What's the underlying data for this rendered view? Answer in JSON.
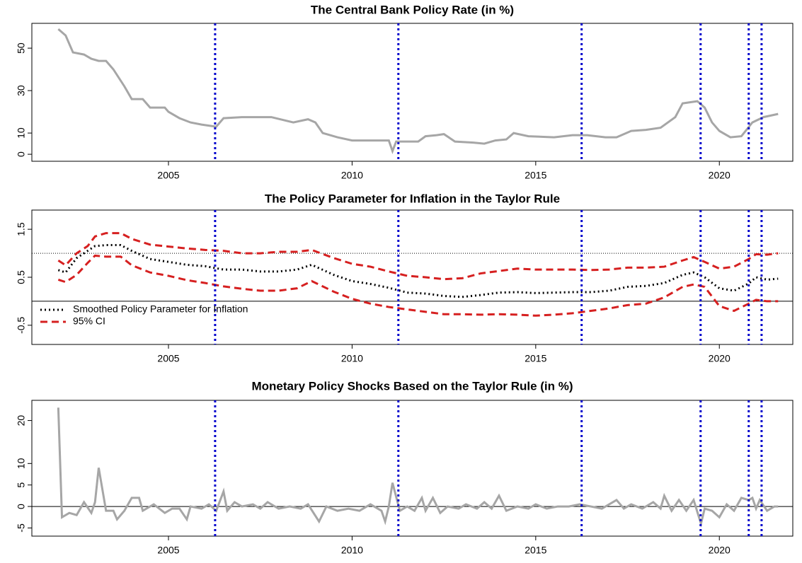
{
  "chart_data": [
    {
      "type": "line",
      "title": "The Central Bank Policy Rate (in %)",
      "xlim": [
        2001.28,
        2022.0
      ],
      "xticks": [
        2005,
        2010,
        2015,
        2020
      ],
      "ylim": [
        -3.3,
        61.7
      ],
      "yticks": [
        0,
        10,
        30,
        50
      ],
      "vlines": [
        2006.27,
        2011.26,
        2016.25,
        2019.49,
        2020.8,
        2021.15
      ],
      "vline_color": "#0000cc",
      "x": [
        2002.0,
        2002.2,
        2002.4,
        2002.7,
        2002.9,
        2003.1,
        2003.3,
        2003.5,
        2003.8,
        2004.0,
        2004.3,
        2004.5,
        2004.9,
        2005.0,
        2005.3,
        2005.6,
        2005.9,
        2006.3,
        2006.5,
        2007.0,
        2007.8,
        2008.4,
        2008.8,
        2009.0,
        2009.2,
        2009.6,
        2010.0,
        2011.0,
        2011.1,
        2011.2,
        2011.8,
        2012.0,
        2012.3,
        2012.5,
        2012.8,
        2013.3,
        2013.6,
        2013.9,
        2014.2,
        2014.4,
        2014.8,
        2015.5,
        2016.0,
        2016.4,
        2016.9,
        2017.2,
        2017.6,
        2018.0,
        2018.4,
        2018.8,
        2019.0,
        2019.4,
        2019.6,
        2019.8,
        2020.0,
        2020.3,
        2020.6,
        2020.9,
        2021.2,
        2021.6
      ],
      "series": [
        {
          "color": "#a6a6a6",
          "style": "solid",
          "values": [
            59,
            56,
            48,
            47,
            45,
            44,
            44,
            40,
            32,
            26,
            26,
            22,
            22,
            20,
            17,
            15,
            14,
            13,
            17,
            17.5,
            17.5,
            15,
            16.5,
            15,
            10,
            8,
            6.5,
            6.5,
            1.5,
            6,
            6,
            8.5,
            9,
            9.5,
            6,
            5.5,
            5,
            6.5,
            7,
            10,
            8.5,
            8,
            9,
            9,
            8,
            8,
            11,
            11.5,
            12.5,
            17.5,
            24,
            25,
            22,
            15,
            11,
            8,
            8.5,
            15,
            17.5,
            19
          ]
        }
      ]
    },
    {
      "type": "line",
      "title": "The Policy Parameter for Inflation in the Taylor Rule",
      "xlim": [
        2001.28,
        2022.0
      ],
      "xticks": [
        2005,
        2010,
        2015,
        2020
      ],
      "ylim": [
        -0.9,
        1.9
      ],
      "yticks": [
        -0.5,
        0.5,
        1.5
      ],
      "hlines": [
        {
          "value": 0,
          "style": "solid"
        },
        {
          "value": 1,
          "style": "dotted"
        }
      ],
      "vlines": [
        2006.27,
        2011.26,
        2016.25,
        2019.49,
        2020.8,
        2021.15
      ],
      "vline_color": "#0000cc",
      "legend": "bottom-left",
      "x": [
        2002.0,
        2002.2,
        2002.5,
        2002.8,
        2003.0,
        2003.3,
        2003.7,
        2004.0,
        2004.5,
        2005.0,
        2005.5,
        2006.0,
        2006.5,
        2007.0,
        2007.5,
        2008.0,
        2008.5,
        2008.9,
        2009.5,
        2010.0,
        2010.5,
        2011.0,
        2011.5,
        2012.0,
        2012.5,
        2013.0,
        2013.5,
        2014.0,
        2014.5,
        2015.0,
        2015.5,
        2016.0,
        2016.5,
        2017.0,
        2017.5,
        2018.0,
        2018.5,
        2019.0,
        2019.3,
        2019.6,
        2020.0,
        2020.4,
        2020.8,
        2021.0,
        2021.3,
        2021.6
      ],
      "series": [
        {
          "name": "Smoothed Policy Parameter for Inflation",
          "color": "#000000",
          "style": "dotted",
          "values": [
            0.65,
            0.6,
            0.9,
            1.05,
            1.15,
            1.17,
            1.17,
            1.05,
            0.88,
            0.82,
            0.76,
            0.73,
            0.66,
            0.66,
            0.62,
            0.62,
            0.66,
            0.76,
            0.55,
            0.42,
            0.36,
            0.28,
            0.18,
            0.16,
            0.11,
            0.09,
            0.13,
            0.18,
            0.19,
            0.17,
            0.18,
            0.19,
            0.19,
            0.22,
            0.3,
            0.32,
            0.38,
            0.55,
            0.6,
            0.5,
            0.27,
            0.22,
            0.37,
            0.5,
            0.45,
            0.47
          ]
        },
        {
          "name": "95% CI",
          "color": "#d62020",
          "style": "dashed",
          "upper": [
            0.85,
            0.75,
            1.0,
            1.15,
            1.35,
            1.42,
            1.42,
            1.3,
            1.18,
            1.14,
            1.1,
            1.07,
            1.05,
            1.0,
            1.0,
            1.03,
            1.03,
            1.07,
            0.9,
            0.78,
            0.72,
            0.62,
            0.53,
            0.5,
            0.46,
            0.48,
            0.58,
            0.63,
            0.68,
            0.66,
            0.66,
            0.66,
            0.65,
            0.66,
            0.7,
            0.7,
            0.72,
            0.85,
            0.92,
            0.82,
            0.68,
            0.72,
            0.88,
            0.98,
            0.97,
            1.0
          ],
          "lower": [
            0.45,
            0.4,
            0.55,
            0.8,
            0.95,
            0.93,
            0.93,
            0.75,
            0.6,
            0.53,
            0.44,
            0.38,
            0.31,
            0.26,
            0.22,
            0.22,
            0.27,
            0.42,
            0.2,
            0.05,
            -0.05,
            -0.12,
            -0.17,
            -0.22,
            -0.27,
            -0.27,
            -0.28,
            -0.27,
            -0.28,
            -0.3,
            -0.28,
            -0.25,
            -0.2,
            -0.15,
            -0.08,
            -0.05,
            0.08,
            0.3,
            0.35,
            0.3,
            -0.1,
            -0.2,
            -0.05,
            0.03,
            0.0,
            0.0
          ]
        }
      ]
    },
    {
      "type": "line",
      "title": "Monetary Policy Shocks Based on the Taylor Rule (in %)",
      "xlim": [
        2001.28,
        2022.0
      ],
      "xticks": [
        2005,
        2010,
        2015,
        2020
      ],
      "ylim": [
        -6.9,
        24.7
      ],
      "yticks": [
        -5,
        0,
        5,
        10,
        20
      ],
      "hlines": [
        {
          "value": 0,
          "style": "solid"
        }
      ],
      "vlines": [
        2006.27,
        2011.26,
        2016.25,
        2019.49,
        2020.8,
        2021.15
      ],
      "vline_color": "#0000cc",
      "x": [
        2002.0,
        2002.1,
        2002.3,
        2002.5,
        2002.7,
        2002.9,
        2003.0,
        2003.1,
        2003.3,
        2003.5,
        2003.6,
        2003.8,
        2004.0,
        2004.2,
        2004.3,
        2004.6,
        2004.9,
        2005.1,
        2005.3,
        2005.5,
        2005.6,
        2005.9,
        2006.1,
        2006.3,
        2006.5,
        2006.6,
        2006.8,
        2007.0,
        2007.3,
        2007.5,
        2007.7,
        2008.0,
        2008.3,
        2008.6,
        2008.8,
        2009.1,
        2009.3,
        2009.6,
        2009.9,
        2010.2,
        2010.5,
        2010.8,
        2010.9,
        2011.0,
        2011.1,
        2011.3,
        2011.5,
        2011.7,
        2011.9,
        2012.0,
        2012.2,
        2012.4,
        2012.6,
        2012.9,
        2013.1,
        2013.4,
        2013.6,
        2013.8,
        2014.0,
        2014.2,
        2014.5,
        2014.8,
        2015.0,
        2015.3,
        2015.6,
        2015.9,
        2016.2,
        2016.5,
        2016.8,
        2017.0,
        2017.2,
        2017.4,
        2017.6,
        2017.9,
        2018.2,
        2018.4,
        2018.5,
        2018.7,
        2018.9,
        2019.1,
        2019.3,
        2019.5,
        2019.6,
        2019.8,
        2020.0,
        2020.2,
        2020.4,
        2020.6,
        2020.8,
        2020.9,
        2021.0,
        2021.1,
        2021.3,
        2021.5,
        2021.6
      ],
      "series": [
        {
          "color": "#a6a6a6",
          "style": "solid",
          "values": [
            23,
            -2.5,
            -1.5,
            -2,
            1,
            -1.5,
            1,
            9,
            -1,
            -1,
            -3,
            -1,
            2,
            2,
            -1,
            0.5,
            -1.5,
            -0.5,
            -0.5,
            -3,
            0,
            -0.5,
            0.5,
            -1,
            3.5,
            -1,
            1,
            0,
            0.5,
            -0.5,
            1,
            -0.5,
            0,
            -0.5,
            0.5,
            -3.5,
            0,
            -1,
            -0.5,
            -1,
            0.5,
            -1,
            -3.5,
            0,
            5.5,
            -1,
            0,
            -1,
            2,
            -1,
            2,
            -1.5,
            0,
            -0.5,
            0.5,
            -0.5,
            1,
            -0.5,
            2.5,
            -1,
            0,
            -0.5,
            0.5,
            -0.5,
            0,
            0,
            0.5,
            0,
            -0.5,
            0.5,
            1.5,
            -0.5,
            0.5,
            -0.5,
            1,
            -0.5,
            2.5,
            -1,
            1.5,
            -1,
            1.5,
            -4,
            -0.5,
            -1,
            -2.5,
            0.5,
            -1,
            2,
            1.5,
            2,
            -0.5,
            1.5,
            -1,
            0,
            0
          ]
        }
      ]
    }
  ]
}
